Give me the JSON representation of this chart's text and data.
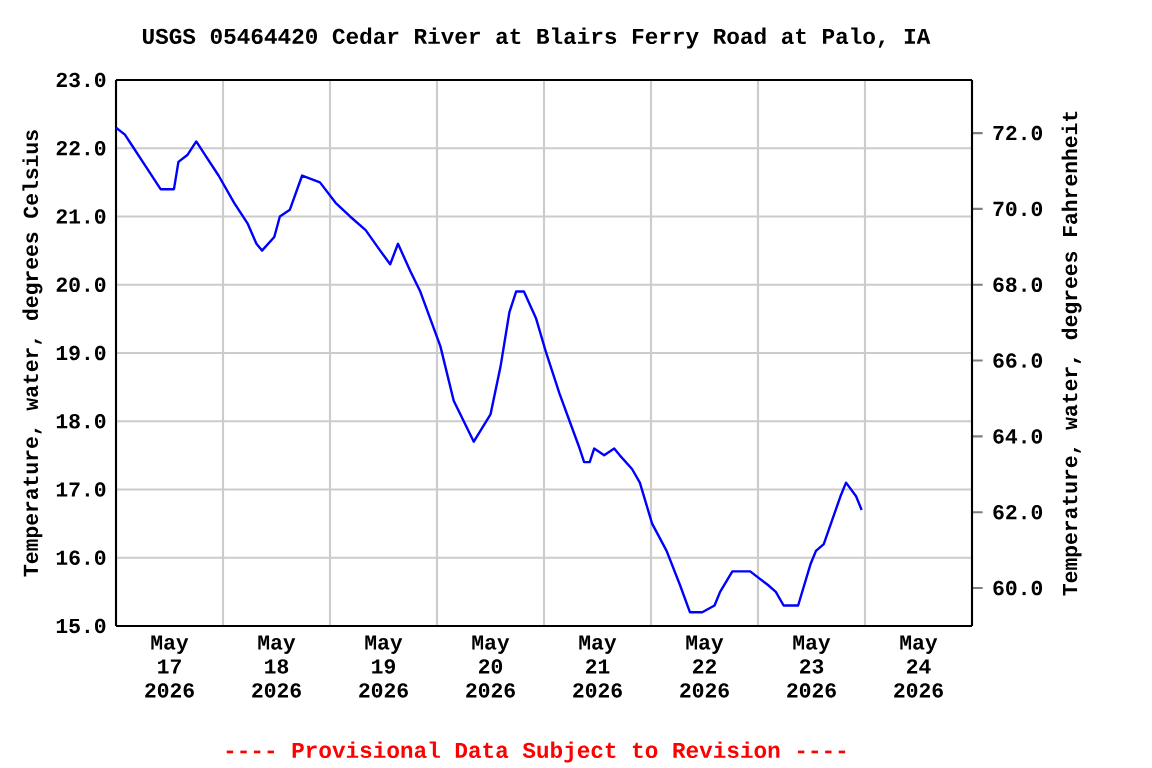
{
  "chart_data": {
    "type": "line",
    "title": "USGS 05464420 Cedar River at Blairs Ferry Road at Palo, IA",
    "ylabel": "Temperature, water, degrees Celsius",
    "y2label": "Temperature, water, degrees Fahrenheit",
    "annotations": [
      "---- Provisional Data Subject to Revision ----"
    ],
    "x": [
      "2026-05-17T00:00",
      "2026-05-17T02:00",
      "2026-05-17T04:00",
      "2026-05-17T06:00",
      "2026-05-17T10:00",
      "2026-05-17T13:00",
      "2026-05-17T14:00",
      "2026-05-17T16:00",
      "2026-05-17T18:00",
      "2026-05-17T20:00",
      "2026-05-17T23:00",
      "2026-05-18T02:30",
      "2026-05-18T05:30",
      "2026-05-18T07:30",
      "2026-05-18T08:45",
      "2026-05-18T11:30",
      "2026-05-18T12:45",
      "2026-05-18T15:00",
      "2026-05-18T17:45",
      "2026-05-18T21:45",
      "2026-05-19T01:15",
      "2026-05-19T04:30",
      "2026-05-19T08:00",
      "2026-05-19T11:15",
      "2026-05-19T13:30",
      "2026-05-19T15:15",
      "2026-05-19T18:00",
      "2026-05-19T20:15",
      "2026-05-19T22:30",
      "2026-05-20T00:45",
      "2026-05-20T03:45",
      "2026-05-20T08:15",
      "2026-05-20T12:00",
      "2026-05-20T14:15",
      "2026-05-20T16:15",
      "2026-05-20T17:45",
      "2026-05-20T19:30",
      "2026-05-20T22:15",
      "2026-05-21T00:30",
      "2026-05-21T03:30",
      "2026-05-21T05:45",
      "2026-05-21T08:00",
      "2026-05-21T09:00",
      "2026-05-21T10:15",
      "2026-05-21T11:15",
      "2026-05-21T13:30",
      "2026-05-21T15:45",
      "2026-05-21T17:00",
      "2026-05-21T19:45",
      "2026-05-21T21:30",
      "2026-05-22T00:15",
      "2026-05-22T03:30",
      "2026-05-22T06:30",
      "2026-05-22T08:45",
      "2026-05-22T11:30",
      "2026-05-22T14:15",
      "2026-05-22T15:30",
      "2026-05-22T18:15",
      "2026-05-22T22:15",
      "2026-05-23T02:15",
      "2026-05-23T04:00",
      "2026-05-23T05:45",
      "2026-05-23T09:00",
      "2026-05-23T11:45",
      "2026-05-23T13:00",
      "2026-05-23T14:45",
      "2026-05-23T18:30",
      "2026-05-23T19:45",
      "2026-05-23T22:00",
      "2026-05-23T23:15"
    ],
    "series": [
      {
        "color": "#0000ff",
        "values": [
          22.3,
          22.2,
          22.0,
          21.8,
          21.4,
          21.4,
          21.8,
          21.9,
          22.1,
          21.9,
          21.6,
          21.2,
          20.9,
          20.6,
          20.5,
          20.7,
          21.0,
          21.1,
          21.6,
          21.5,
          21.2,
          21.0,
          20.8,
          20.5,
          20.3,
          20.6,
          20.2,
          19.9,
          19.5,
          19.1,
          18.3,
          17.7,
          18.1,
          18.8,
          19.6,
          19.9,
          19.9,
          19.5,
          19.0,
          18.4,
          18.0,
          17.6,
          17.4,
          17.4,
          17.6,
          17.5,
          17.6,
          17.5,
          17.3,
          17.1,
          16.5,
          16.1,
          15.6,
          15.2,
          15.2,
          15.3,
          15.5,
          15.8,
          15.8,
          15.6,
          15.5,
          15.3,
          15.3,
          15.9,
          16.1,
          16.2,
          16.9,
          17.1,
          16.9,
          16.7
        ]
      }
    ],
    "xlim": [
      "2026-05-17T00:00",
      "2026-05-25T00:00"
    ],
    "xticks": [
      {
        "value": "2026-05-17T12:00",
        "label": "May 17 2026"
      },
      {
        "value": "2026-05-18T12:00",
        "label": "May 18 2026"
      },
      {
        "value": "2026-05-19T12:00",
        "label": "May 19 2026"
      },
      {
        "value": "2026-05-20T12:00",
        "label": "May 20 2026"
      },
      {
        "value": "2026-05-21T12:00",
        "label": "May 21 2026"
      },
      {
        "value": "2026-05-22T12:00",
        "label": "May 22 2026"
      },
      {
        "value": "2026-05-23T12:00",
        "label": "May 23 2026"
      },
      {
        "value": "2026-05-24T12:00",
        "label": "May 24 2026"
      },
      {
        "value": "2026-05-18T00:00",
        "label": null
      },
      {
        "value": "2026-05-19T00:00",
        "label": null
      },
      {
        "value": "2026-05-20T00:00",
        "label": null
      },
      {
        "value": "2026-05-21T00:00",
        "label": null
      },
      {
        "value": "2026-05-22T00:00",
        "label": null
      },
      {
        "value": "2026-05-23T00:00",
        "label": null
      },
      {
        "value": "2026-05-24T00:00",
        "label": null
      }
    ],
    "ylim": [
      15,
      23
    ],
    "yticks": [
      {
        "value": 15,
        "label": "15.0"
      },
      {
        "value": 16,
        "label": "16.0"
      },
      {
        "value": 17,
        "label": "17.0"
      },
      {
        "value": 18,
        "label": "18.0"
      },
      {
        "value": 19,
        "label": "19.0"
      },
      {
        "value": 20,
        "label": "20.0"
      },
      {
        "value": 21,
        "label": "21.0"
      },
      {
        "value": 22,
        "label": "22.0"
      },
      {
        "value": 23,
        "label": "23.0"
      }
    ],
    "y2lim": [
      59,
      73.4
    ],
    "y2ticks": [
      {
        "value": 60,
        "label": "60.0"
      },
      {
        "value": 62,
        "label": "62.0"
      },
      {
        "value": 64,
        "label": "64.0"
      },
      {
        "value": 66,
        "label": "66.0"
      },
      {
        "value": 68,
        "label": "68.0"
      },
      {
        "value": 70,
        "label": "70.0"
      },
      {
        "value": 72,
        "label": "72.0"
      }
    ],
    "grid": true,
    "marker": "none",
    "line_style": "solid"
  }
}
